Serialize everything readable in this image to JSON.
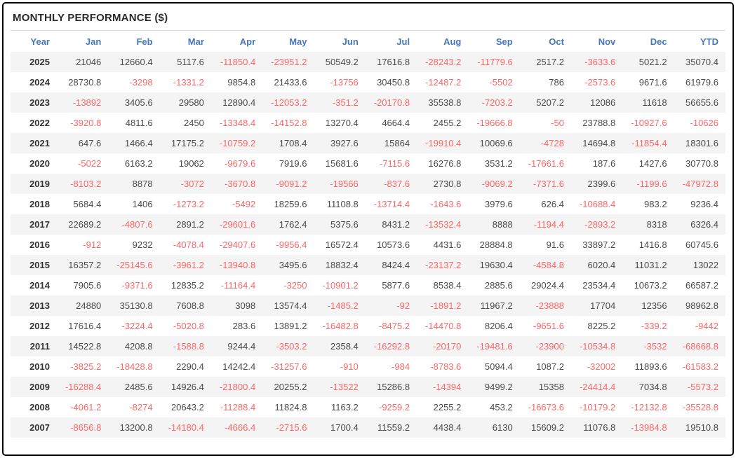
{
  "title": "MONTHLY PERFORMANCE ($)",
  "colors": {
    "header_text": "#4677bc",
    "negative_value": "#ff6666",
    "positive_value": "#4a4a4a",
    "alternate_row_bg": "#f4f4f4",
    "border": "#000000"
  },
  "table": {
    "columns": [
      "Year",
      "Jan",
      "Feb",
      "Mar",
      "Apr",
      "May",
      "Jun",
      "Jul",
      "Aug",
      "Sep",
      "Oct",
      "Nov",
      "Dec",
      "YTD"
    ],
    "rows": [
      {
        "year": "2025",
        "values": [
          21046,
          12660.4,
          5117.6,
          -11850.4,
          -23951.2,
          50549.2,
          17616.8,
          -28243.2,
          -11779.6,
          2517.2,
          -3633.6,
          5021.2,
          35070.4
        ]
      },
      {
        "year": "2024",
        "values": [
          28730.8,
          -3298,
          -1331.2,
          9854.8,
          21433.6,
          -13756,
          30450.8,
          -12487.2,
          -5502,
          786,
          -2573.6,
          9671.6,
          61979.6
        ]
      },
      {
        "year": "2023",
        "values": [
          -13892,
          3405.6,
          29580,
          12890.4,
          -12053.2,
          -351.2,
          -20170.8,
          35538.8,
          -7203.2,
          5207.2,
          12086,
          11618,
          56655.6
        ]
      },
      {
        "year": "2022",
        "values": [
          -3920.8,
          4811.6,
          2450,
          -13348.4,
          -14152.8,
          13270.4,
          4664.4,
          2455.2,
          -19666.8,
          -50,
          23788.8,
          -10927.6,
          -10626
        ]
      },
      {
        "year": "2021",
        "values": [
          647.6,
          1466.4,
          17175.2,
          -10759.2,
          1708.4,
          3927.6,
          15864,
          -19910.4,
          10069.6,
          -4728,
          14694.8,
          -11854.4,
          18301.6
        ]
      },
      {
        "year": "2020",
        "values": [
          -5022,
          6163.2,
          19062,
          -9679.6,
          7919.6,
          15681.6,
          -7115.6,
          16276.8,
          3531.2,
          -17661.6,
          187.6,
          1427.6,
          30770.8
        ]
      },
      {
        "year": "2019",
        "values": [
          -8103.2,
          8878,
          -3072,
          -3670.8,
          -9091.2,
          -19566,
          -837.6,
          2730.8,
          -9069.2,
          -7371.6,
          2399.6,
          -1199.6,
          -47972.8
        ]
      },
      {
        "year": "2018",
        "values": [
          5684.4,
          1406,
          -1273.2,
          -5492,
          18259.6,
          11108.8,
          -13714.4,
          -1643.6,
          3979.6,
          626.4,
          -10688.4,
          983.2,
          9236.4
        ]
      },
      {
        "year": "2017",
        "values": [
          22689.2,
          -4807.6,
          2891.2,
          -29601.6,
          1762.4,
          5375.6,
          8431.2,
          -13532.4,
          8888,
          -1194.4,
          -2893.2,
          8318,
          6326.4
        ]
      },
      {
        "year": "2016",
        "values": [
          -912,
          9232,
          -4078.4,
          -29407.6,
          -9956.4,
          16572.4,
          10573.6,
          4431.6,
          28884.8,
          91.6,
          33897.2,
          1416.8,
          60745.6
        ]
      },
      {
        "year": "2015",
        "values": [
          16357.2,
          -25145.6,
          -3961.2,
          -13940.8,
          3495.6,
          18832.4,
          8424.4,
          -23137.2,
          19630.4,
          -4584.8,
          6020.4,
          11031.2,
          13022
        ]
      },
      {
        "year": "2014",
        "values": [
          7905.6,
          -9371.6,
          12835.2,
          -11164.4,
          -3250,
          -10901.2,
          5877.6,
          8538.4,
          2885.6,
          29024.4,
          23534.4,
          10673.2,
          66587.2
        ]
      },
      {
        "year": "2013",
        "values": [
          24880,
          35130.8,
          7608.8,
          3098,
          13574.4,
          -1485.2,
          -92,
          -1891.2,
          11967.2,
          -23888,
          17704,
          12356,
          98962.8
        ]
      },
      {
        "year": "2012",
        "values": [
          17616.4,
          -3224.4,
          -5020.8,
          283.6,
          13891.2,
          -16482.8,
          -8475.2,
          -14470.8,
          8206.4,
          -9651.6,
          8225.2,
          -339.2,
          -9442
        ]
      },
      {
        "year": "2011",
        "values": [
          14522.8,
          4208.8,
          -1588.8,
          9244.4,
          -3503.2,
          2358.4,
          -16292.8,
          -20170,
          -19481.6,
          -23900,
          -10534.8,
          -3532,
          -68668.8
        ]
      },
      {
        "year": "2010",
        "values": [
          -3825.2,
          -18428.8,
          2290.4,
          14242.4,
          -31257.6,
          -910,
          -984,
          -8783.6,
          5094.4,
          1087.2,
          -32002,
          11893.6,
          -61583.2
        ]
      },
      {
        "year": "2009",
        "values": [
          -16288.4,
          2485.6,
          14926.4,
          -21800.4,
          20255.2,
          -13522,
          15286.8,
          -14394,
          9499.2,
          15358,
          -24414.4,
          7034.8,
          -5573.2
        ]
      },
      {
        "year": "2008",
        "values": [
          -4061.2,
          -8274,
          20643.2,
          -11288.4,
          11824.8,
          1163.2,
          -9259.2,
          2255.2,
          453.2,
          -16673.6,
          -10179.2,
          -12132.8,
          -35528.8
        ]
      },
      {
        "year": "2007",
        "values": [
          -8656.8,
          13200.8,
          -14180.4,
          -4666.4,
          -2715.6,
          1700.4,
          11559.2,
          4438.4,
          6130,
          15609.2,
          11076.8,
          -13984.8,
          19510.8
        ]
      }
    ]
  }
}
